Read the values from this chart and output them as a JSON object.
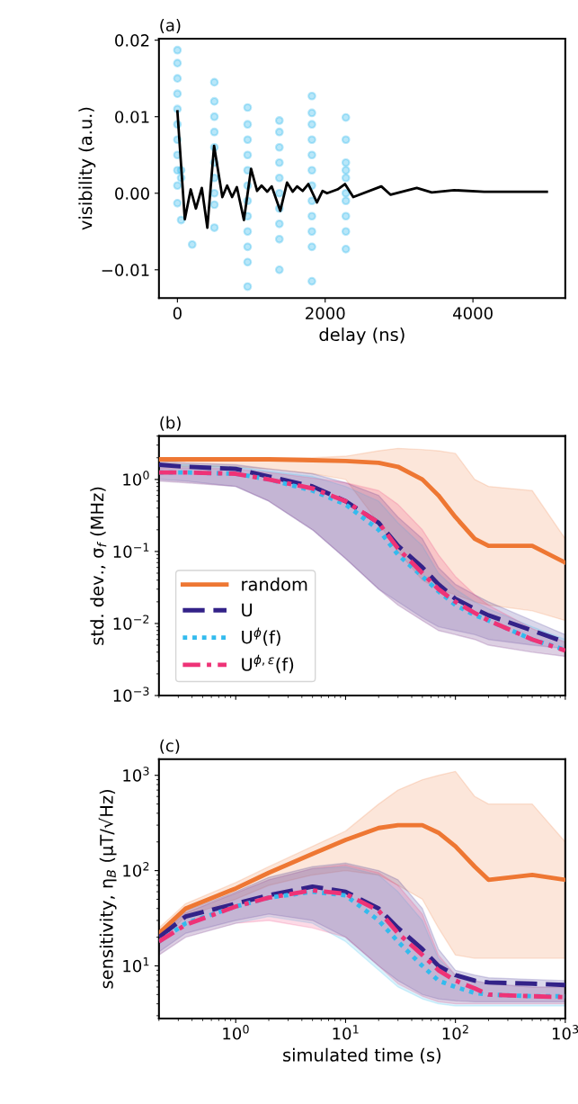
{
  "chart_data": [
    {
      "type": "scatter",
      "title": "(a)",
      "xlabel": "delay (ns)",
      "ylabel": "visibility (a.u.)",
      "xlim": [
        -250,
        5250
      ],
      "ylim": [
        -0.0137,
        0.0202
      ],
      "xticks": [
        0,
        2000,
        4000
      ],
      "yticks": [
        {
          "value": -0.01,
          "label": "−0.01"
        },
        {
          "value": 0.0,
          "label": "0.00"
        },
        {
          "value": 0.01,
          "label": "0.01"
        },
        {
          "value": 0.02,
          "label": "0.02"
        }
      ],
      "grid": false,
      "marker": "circle",
      "series": [
        {
          "type": "scatter",
          "color": "#33bbee",
          "x": [
            0,
            0,
            0,
            0,
            0,
            0,
            0,
            0,
            0,
            0,
            0,
            50,
            50,
            50,
            200,
            500,
            500,
            500,
            500,
            500,
            500,
            500,
            500,
            500,
            500,
            950,
            950,
            950,
            950,
            950,
            950,
            950,
            950,
            950,
            950,
            950,
            950,
            1380,
            1380,
            1380,
            1380,
            1380,
            1380,
            1380,
            1380,
            1380,
            1380,
            1820,
            1820,
            1820,
            1820,
            1820,
            1820,
            1820,
            1820,
            1820,
            1820,
            1820,
            1820,
            2280,
            2280,
            2280,
            2280,
            2280,
            2280,
            2280,
            2280,
            2280,
            2280
          ],
          "values": [
            0.0187,
            0.017,
            0.015,
            0.013,
            0.011,
            0.009,
            0.007,
            0.005,
            0.003,
            0.001,
            -0.0013,
            0.003,
            0.002,
            -0.0035,
            -0.0067,
            0.0145,
            0.012,
            0.01,
            0.008,
            0.006,
            0.004,
            0.002,
            0.0,
            -0.0015,
            -0.0045,
            0.0112,
            0.009,
            0.007,
            0.005,
            0.003,
            0.001,
            -0.001,
            -0.003,
            -0.005,
            -0.007,
            -0.009,
            -0.0122,
            0.0095,
            0.008,
            0.006,
            0.004,
            0.002,
            0.0,
            -0.002,
            -0.004,
            -0.006,
            -0.01,
            0.0127,
            0.0105,
            0.009,
            0.007,
            0.005,
            0.003,
            0.001,
            -0.001,
            -0.003,
            -0.005,
            -0.007,
            -0.0115,
            0.0099,
            0.007,
            0.004,
            0.003,
            0.002,
            0.0,
            -0.001,
            -0.003,
            -0.005,
            -0.0073
          ]
        },
        {
          "type": "line",
          "color": "#000000",
          "line_style": "solid",
          "marker": "none",
          "x": [
            0,
            100,
            180,
            250,
            330,
            405,
            496,
            608,
            673,
            740,
            805,
            900,
            997,
            1078,
            1139,
            1215,
            1276,
            1392,
            1484,
            1560,
            1620,
            1696,
            1772,
            1889,
            1965,
            2025,
            2167,
            2268,
            2380,
            2760,
            2886,
            3240,
            3443,
            3747,
            4152,
            5000
          ],
          "values": [
            0.0107,
            -0.0034,
            0.0005,
            -0.002,
            0.0007,
            -0.0045,
            0.0062,
            -0.0005,
            0.001,
            -0.0005,
            0.0008,
            -0.0035,
            0.0032,
            0.0003,
            0.001,
            0.0002,
            0.0009,
            -0.0023,
            0.0014,
            0.0002,
            0.0009,
            0.0003,
            0.0012,
            -0.0012,
            0.0003,
            0.0,
            0.0005,
            0.0012,
            -0.0005,
            0.0009,
            -0.0002,
            0.0007,
            0.0001,
            0.0004,
            0.0002,
            0.0002
          ]
        }
      ]
    },
    {
      "type": "line",
      "title": "(b)",
      "ylabel": "std. dev., σ$_{f}$ (MHz)",
      "log": "xy",
      "xlim": [
        0.2,
        1000
      ],
      "ylim": [
        0.001,
        4
      ],
      "xticks": [
        {
          "value": 1,
          "label": null
        },
        {
          "value": 10,
          "label": null
        },
        {
          "value": 100,
          "label": null
        },
        {
          "value": 1000,
          "label": null
        }
      ],
      "yticks": [
        {
          "value": 0.001,
          "label": "10$^{−3}$"
        },
        {
          "value": 0.01,
          "label": "10$^{−2}$"
        },
        {
          "value": 0.1,
          "label": "10$^{−1}$"
        },
        {
          "value": 1,
          "label": "10$^{0}$"
        }
      ],
      "tick_labels": "y",
      "grid": false,
      "legend": "bottom left",
      "x": [
        0.2,
        0.35,
        1,
        2,
        5,
        10,
        20,
        30,
        50,
        70,
        100,
        150,
        200,
        500,
        1000
      ],
      "series": [
        {
          "name": "random",
          "color": "#ee7733",
          "line_style": "solid",
          "values": [
            1.9,
            1.9,
            1.9,
            1.9,
            1.85,
            1.8,
            1.7,
            1.5,
            1.0,
            0.6,
            0.3,
            0.15,
            0.12,
            0.12,
            0.07
          ],
          "lower": [
            1.5,
            1.5,
            1.5,
            1.4,
            1.2,
            1.0,
            0.25,
            0.1,
            0.04,
            0.03,
            0.025,
            0.02,
            0.018,
            0.015,
            0.011
          ],
          "upper": [
            2.0,
            2.0,
            2.0,
            2.0,
            2.0,
            2.1,
            2.5,
            2.7,
            2.6,
            2.5,
            2.3,
            1.0,
            0.8,
            0.7,
            0.15
          ]
        },
        {
          "name": "U",
          "color": "#332288",
          "line_style": "dashed",
          "values": [
            1.6,
            1.5,
            1.4,
            1.1,
            0.8,
            0.5,
            0.25,
            0.12,
            0.06,
            0.035,
            0.022,
            0.016,
            0.013,
            0.008,
            0.0055
          ],
          "lower": [
            1.0,
            0.95,
            0.8,
            0.5,
            0.2,
            0.08,
            0.03,
            0.02,
            0.012,
            0.009,
            0.008,
            0.007,
            0.006,
            0.005,
            0.0045
          ],
          "upper": [
            1.8,
            1.7,
            1.6,
            1.4,
            1.2,
            0.9,
            0.6,
            0.3,
            0.15,
            0.06,
            0.035,
            0.025,
            0.02,
            0.011,
            0.007
          ]
        },
        {
          "name": "U$^{ϕ}$(f)",
          "color": "#33bbee",
          "line_style": "dotted",
          "values": [
            1.25,
            1.25,
            1.2,
            1.0,
            0.7,
            0.45,
            0.2,
            0.09,
            0.045,
            0.028,
            0.018,
            0.013,
            0.011,
            0.006,
            0.0043
          ],
          "lower": [
            0.95,
            0.9,
            0.8,
            0.5,
            0.2,
            0.08,
            0.03,
            0.018,
            0.011,
            0.008,
            0.007,
            0.006,
            0.005,
            0.004,
            0.0035
          ],
          "upper": [
            1.6,
            1.6,
            1.5,
            1.3,
            1.1,
            0.8,
            0.5,
            0.25,
            0.12,
            0.05,
            0.03,
            0.02,
            0.016,
            0.009,
            0.006
          ]
        },
        {
          "name": "U$^{ϕ,ε}$(f)",
          "color": "#ee3377",
          "line_style": "dashdot",
          "values": [
            1.25,
            1.25,
            1.2,
            1.0,
            0.75,
            0.5,
            0.25,
            0.11,
            0.05,
            0.03,
            0.02,
            0.014,
            0.011,
            0.006,
            0.0042
          ],
          "lower": [
            0.95,
            0.9,
            0.8,
            0.5,
            0.2,
            0.08,
            0.03,
            0.018,
            0.011,
            0.008,
            0.007,
            0.006,
            0.005,
            0.004,
            0.0035
          ],
          "upper": [
            1.45,
            1.45,
            1.4,
            1.25,
            1.05,
            0.9,
            0.7,
            0.45,
            0.2,
            0.09,
            0.045,
            0.025,
            0.018,
            0.0085,
            0.0055
          ]
        }
      ]
    },
    {
      "type": "line",
      "title": "(c)",
      "xlabel": "simulated time (s)",
      "ylabel": "sensitivity, η$_{B}$ (μT/√Hz)",
      "log": "xy",
      "xlim": [
        0.2,
        1000
      ],
      "ylim": [
        2.8,
        1480
      ],
      "xticks": [
        {
          "value": 1,
          "label": "10$^{0}$"
        },
        {
          "value": 10,
          "label": "10$^{1}$"
        },
        {
          "value": 100,
          "label": "10$^{2}$"
        },
        {
          "value": 1000,
          "label": "10$^{3}$"
        }
      ],
      "yticks": [
        {
          "value": 10,
          "label": "10$^{1}$"
        },
        {
          "value": 100,
          "label": "10$^{2}$"
        },
        {
          "value": 1000,
          "label": "10$^{3}$"
        }
      ],
      "grid": false,
      "x": [
        0.2,
        0.35,
        1,
        2,
        5,
        10,
        20,
        30,
        50,
        70,
        100,
        150,
        200,
        500,
        1000
      ],
      "series": [
        {
          "color": "#ee7733",
          "line_style": "solid",
          "values": [
            22,
            40,
            65,
            95,
            150,
            210,
            280,
            300,
            300,
            250,
            180,
            110,
            80,
            90,
            80
          ],
          "lower": [
            18,
            33,
            50,
            70,
            90,
            100,
            90,
            70,
            50,
            25,
            13,
            12,
            12,
            12,
            12
          ],
          "upper": [
            25,
            45,
            75,
            110,
            180,
            260,
            500,
            700,
            900,
            1000,
            1100,
            600,
            500,
            500,
            200
          ]
        },
        {
          "color": "#332288",
          "line_style": "dashed",
          "values": [
            20,
            33,
            45,
            55,
            68,
            60,
            40,
            25,
            15,
            10,
            8,
            7,
            6.7,
            6.5,
            6.3
          ],
          "lower": [
            14,
            22,
            30,
            35,
            30,
            20,
            10,
            7,
            5,
            4.5,
            4.3,
            4.2,
            4.2,
            4.2,
            4.2
          ],
          "upper": [
            22,
            38,
            60,
            85,
            110,
            120,
            100,
            80,
            40,
            15,
            9,
            8,
            7.5,
            7.2,
            7
          ]
        },
        {
          "color": "#33bbee",
          "line_style": "dotted",
          "values": [
            18,
            28,
            42,
            52,
            60,
            55,
            30,
            18,
            10,
            7,
            6,
            5.2,
            5,
            4.8,
            4.8
          ],
          "lower": [
            13,
            20,
            28,
            33,
            28,
            18,
            9,
            6,
            4.5,
            4,
            3.8,
            3.8,
            3.8,
            3.8,
            3.8
          ],
          "upper": [
            21,
            36,
            58,
            80,
            105,
            110,
            90,
            60,
            30,
            12,
            8,
            7,
            6.5,
            6,
            6
          ]
        },
        {
          "color": "#ee3377",
          "line_style": "dashdot",
          "values": [
            18,
            27,
            42,
            52,
            62,
            57,
            38,
            22,
            13,
            9,
            7,
            5.8,
            5,
            4.8,
            4.7
          ],
          "lower": [
            13,
            20,
            28,
            30,
            25,
            20,
            10,
            6.5,
            4.8,
            4.2,
            4,
            4,
            4,
            4,
            4
          ],
          "upper": [
            21,
            36,
            58,
            80,
            105,
            115,
            95,
            70,
            35,
            13,
            8,
            7,
            6.5,
            6,
            6
          ]
        }
      ]
    }
  ]
}
